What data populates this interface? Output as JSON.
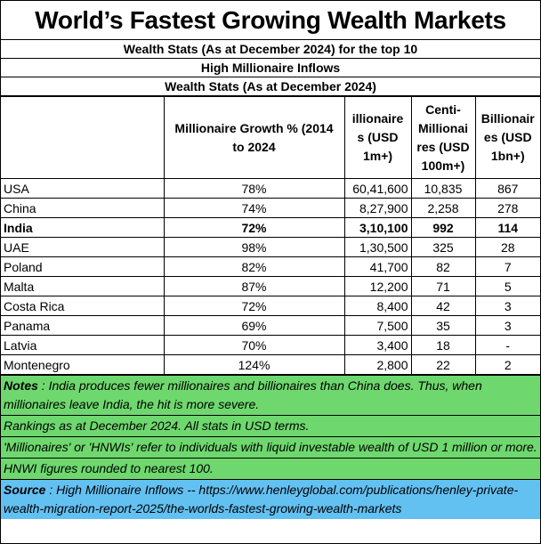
{
  "title": "World’s Fastest Growing Wealth Markets",
  "subtitle1": "Wealth Stats (As at December 2024) for the top 10",
  "subtitle2": "High Millionaire Inflows",
  "subtitle3": "Wealth Stats (As at December 2024)",
  "headers": {
    "country": "",
    "growth": "Millionaire Growth % (2014 to 2024",
    "millionaires": "illionaire s (USD 1m+)",
    "centi": "Centi-Millionai res (USD 100m+)",
    "billionaires": "Billionair es (USD 1bn+)"
  },
  "rows": [
    {
      "country": "USA",
      "growth": "78%",
      "millionaires": "60,41,600",
      "centi": "10,835",
      "billionaires": "867"
    },
    {
      "country": "China",
      "growth": "74%",
      "millionaires": "8,27,900",
      "centi": "2,258",
      "billionaires": "278"
    },
    {
      "country": "India",
      "growth": "72%",
      "millionaires": "3,10,100",
      "centi": "992",
      "billionaires": "114"
    },
    {
      "country": "UAE",
      "growth": "98%",
      "millionaires": "1,30,500",
      "centi": "325",
      "billionaires": "28"
    },
    {
      "country": "Poland",
      "growth": "82%",
      "millionaires": "41,700",
      "centi": "82",
      "billionaires": "7"
    },
    {
      "country": "Malta",
      "growth": "87%",
      "millionaires": "12,200",
      "centi": "71",
      "billionaires": "5"
    },
    {
      "country": "Costa Rica",
      "growth": "72%",
      "millionaires": "8,400",
      "centi": "42",
      "billionaires": "3"
    },
    {
      "country": "Panama",
      "growth": "69%",
      "millionaires": "7,500",
      "centi": "35",
      "billionaires": "3"
    },
    {
      "country": "Latvia",
      "growth": "70%",
      "millionaires": "3,400",
      "centi": "18",
      "billionaires": "-"
    },
    {
      "country": "Montenegro",
      "growth": "124%",
      "millionaires": "2,800",
      "centi": "22",
      "billionaires": "2"
    }
  ],
  "notes": {
    "label": "Notes",
    "text": " : India produces fewer millionaires and billionaires than China does.  Thus, when millionaires leave India, the hit is more severe.",
    "rankings": "Rankings as at December 2024. All stats in USD terms.",
    "definition": "'Millionaires' or 'HNWIs' refer to individuals with liquid investable wealth of USD 1 million or more.",
    "rounding": "HNWI figures rounded to nearest 100."
  },
  "source": {
    "label": "Source",
    "text": " : High Millionaire Inflows -- https://www.henleyglobal.com/publications/henley-private-wealth-migration-report-2025/the-worlds-fastest-growing-wealth-markets"
  },
  "colors": {
    "notes_bg": "#6ed86e",
    "source_bg": "#63c1f2"
  }
}
